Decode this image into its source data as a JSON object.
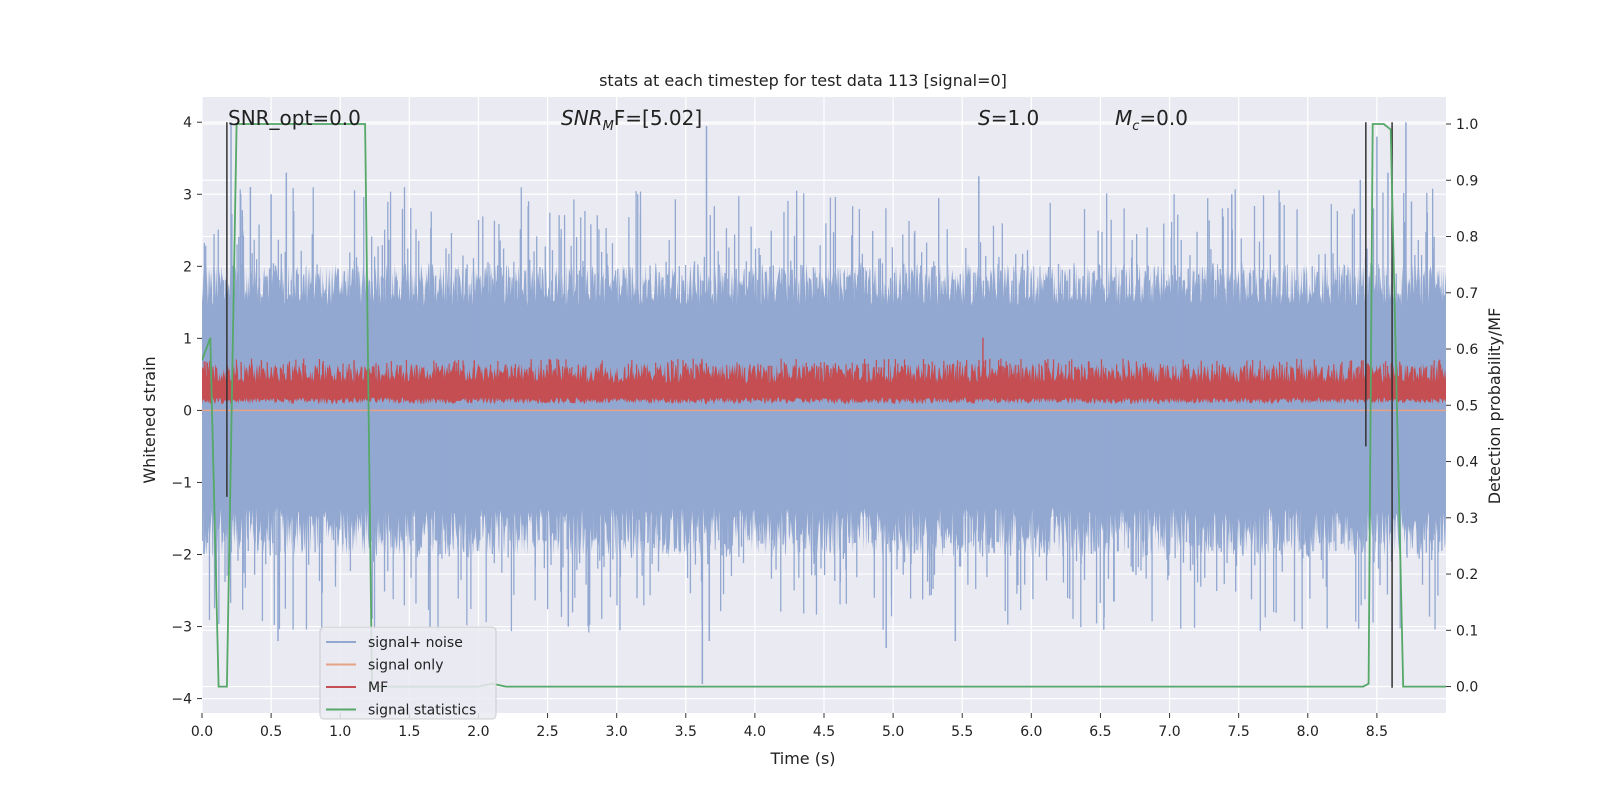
{
  "chart_data": {
    "type": "line",
    "title": "stats at each timestep for test data 113 [signal=0]",
    "xlabel": "Time (s)",
    "ylabel_left": "Whitened strain",
    "ylabel_right": "Detection probability/MF",
    "xlim": [
      0.0,
      9.0
    ],
    "ylim_left": [
      -4.2,
      4.35
    ],
    "ylim_right": [
      -0.047,
      1.048
    ],
    "x_ticks": [
      0.0,
      0.5,
      1.0,
      1.5,
      2.0,
      2.5,
      3.0,
      3.5,
      4.0,
      4.5,
      5.0,
      5.5,
      6.0,
      6.5,
      7.0,
      7.5,
      8.0,
      8.5
    ],
    "x_tick_labels": [
      "0.0",
      "0.5",
      "1.0",
      "1.5",
      "2.0",
      "2.5",
      "3.0",
      "3.5",
      "4.0",
      "4.5",
      "5.0",
      "5.5",
      "6.0",
      "6.5",
      "7.0",
      "7.5",
      "8.0",
      "8.5"
    ],
    "y_left_ticks": [
      -4,
      -3,
      -2,
      -1,
      0,
      1,
      2,
      3,
      4
    ],
    "y_left_tick_labels": [
      "−4",
      "−3",
      "−2",
      "−1",
      "0",
      "1",
      "2",
      "3",
      "4"
    ],
    "y_right_ticks": [
      0.0,
      0.1,
      0.2,
      0.3,
      0.4,
      0.5,
      0.6,
      0.7,
      0.8,
      0.9,
      1.0
    ],
    "y_right_tick_labels": [
      "0.0",
      "0.1",
      "0.2",
      "0.3",
      "0.4",
      "0.5",
      "0.6",
      "0.7",
      "0.8",
      "0.9",
      "1.0"
    ],
    "grid": true,
    "legend_position": "lower-left",
    "annotations": {
      "snr_opt": "SNR_opt=0.0",
      "snr_mf_main": "SNR",
      "snr_mf_sub": "M",
      "snr_mf_rest": "F=[5.02]",
      "s_italic": "S",
      "s_rest": "=1.0",
      "mc_italic": "M",
      "mc_sub": "c",
      "mc_rest": "=0.0"
    },
    "series": [
      {
        "name": "signal+ noise",
        "axis": "left",
        "color": "#92a8d1",
        "description_values": "whitened noise fluctuating within about ±1.7, peaks to ~±4",
        "peaks": [
          [
            0.21,
            4.0
          ],
          [
            0.28,
            3.0
          ],
          [
            0.35,
            3.1
          ],
          [
            0.5,
            3.0
          ],
          [
            0.61,
            3.3
          ],
          [
            3.65,
            3.95
          ],
          [
            3.62,
            -3.8
          ],
          [
            3.67,
            -3.2
          ],
          [
            5.45,
            -3.2
          ],
          [
            5.62,
            3.25
          ],
          [
            7.45,
            3.0
          ],
          [
            8.38,
            3.2
          ],
          [
            8.5,
            3.8
          ],
          [
            8.58,
            3.3
          ],
          [
            8.71,
            4.0
          ],
          [
            8.75,
            2.9
          ],
          [
            0.55,
            -3.2
          ],
          [
            1.65,
            -3.0
          ],
          [
            2.65,
            -3.0
          ],
          [
            4.95,
            -3.3
          ]
        ]
      },
      {
        "name": "signal only",
        "axis": "left",
        "color": "#e8a285",
        "values": [
          [
            0.0,
            0.0
          ],
          [
            9.0,
            0.0
          ]
        ]
      },
      {
        "name": "MF",
        "axis": "right",
        "color": "#c44e52",
        "description_values": "noisy band between ~0.50 and ~0.57 with peaks near 0.6",
        "peaks": [
          [
            5.65,
            0.62
          ],
          [
            0.43,
            0.58
          ],
          [
            1.1,
            0.58
          ],
          [
            1.97,
            0.58
          ],
          [
            6.1,
            0.58
          ],
          [
            8.4,
            0.58
          ]
        ]
      },
      {
        "name": "signal statistics",
        "axis": "right",
        "color": "#55a868",
        "values": [
          [
            0.0,
            0.58
          ],
          [
            0.06,
            0.62
          ],
          [
            0.12,
            0.0
          ],
          [
            0.18,
            0.0
          ],
          [
            0.25,
            1.0
          ],
          [
            1.18,
            1.0
          ],
          [
            1.23,
            0.0
          ],
          [
            2.0,
            0.0
          ],
          [
            2.1,
            0.005
          ],
          [
            2.2,
            0.0
          ],
          [
            8.4,
            0.0
          ],
          [
            8.44,
            0.005
          ],
          [
            8.47,
            1.0
          ],
          [
            8.55,
            1.0
          ],
          [
            8.6,
            0.99
          ],
          [
            8.69,
            0.0
          ],
          [
            9.0,
            0.0
          ]
        ]
      }
    ],
    "markers": [
      {
        "x": 0.18,
        "y_top": 4.0,
        "y_bottom": -1.2,
        "color": "#333333"
      },
      {
        "x": 8.42,
        "y_top": 4.0,
        "y_bottom": -0.5,
        "color": "#333333"
      },
      {
        "x": 8.61,
        "y_top": 4.0,
        "y_bottom": -3.85,
        "color": "#333333"
      }
    ],
    "colors": {
      "background": "#eaeaf2",
      "grid": "#ffffff"
    }
  }
}
